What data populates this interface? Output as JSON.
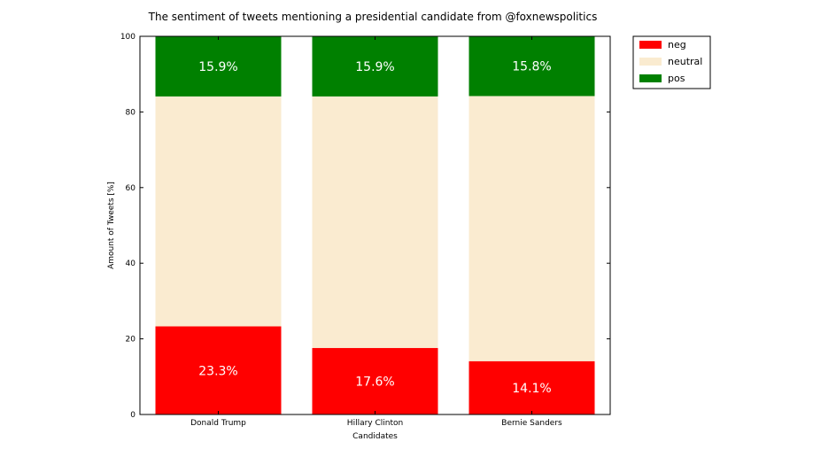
{
  "chart_data": {
    "type": "bar",
    "stacked": true,
    "title": "The sentiment of tweets mentioning a presidential candidate from @foxnewspolitics",
    "xlabel": "Candidates",
    "ylabel": "Amount of Tweets [%]",
    "ylim": [
      0,
      100
    ],
    "yticks": [
      0,
      20,
      40,
      60,
      80,
      100
    ],
    "categories": [
      "Donald Trump",
      "Hillary Clinton",
      "Bernie Sanders"
    ],
    "series": [
      {
        "name": "neg",
        "color": "#ff0000",
        "values": [
          23.3,
          17.6,
          14.1
        ],
        "labels": [
          "23.3%",
          "17.6%",
          "14.1%"
        ]
      },
      {
        "name": "neutral",
        "color": "#faebd0",
        "values": [
          60.8,
          66.5,
          70.1
        ],
        "labels": []
      },
      {
        "name": "pos",
        "color": "#008000",
        "values": [
          15.9,
          15.9,
          15.8
        ],
        "labels": [
          "15.9%",
          "15.9%",
          "15.8%"
        ]
      }
    ],
    "legend_position": "outside top-right",
    "grid": false
  }
}
